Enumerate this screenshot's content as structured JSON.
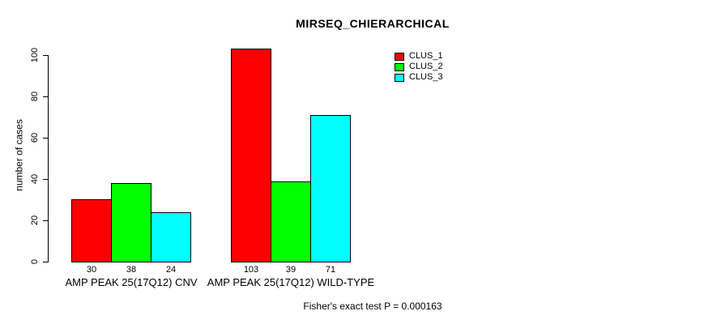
{
  "chart_data": {
    "type": "bar",
    "title": "MIRSEQ_CHIERARCHICAL",
    "ylabel": "number of cases",
    "xlabel": "",
    "ylim": [
      0,
      100
    ],
    "yticks": [
      0,
      20,
      40,
      60,
      80,
      100
    ],
    "grid": false,
    "legend_position": "top-right",
    "series": [
      {
        "name": "CLUS_1",
        "color": "#FF0000"
      },
      {
        "name": "CLUS_2",
        "color": "#00FF00"
      },
      {
        "name": "CLUS_3",
        "color": "#00FFFF"
      }
    ],
    "categories": [
      "AMP PEAK 25(17Q12) CNV",
      "AMP PEAK 25(17Q12) WILD-TYPE"
    ],
    "groups": [
      {
        "label": "AMP PEAK 25(17Q12) CNV",
        "values": [
          30,
          38,
          24
        ]
      },
      {
        "label": "AMP PEAK 25(17Q12) WILD-TYPE",
        "values": [
          103,
          39,
          71
        ]
      }
    ],
    "bar_value_labels": [
      [
        30,
        38,
        24
      ],
      [
        103,
        39,
        71
      ]
    ],
    "footer": "Fisher's exact test P = 0.000163"
  }
}
